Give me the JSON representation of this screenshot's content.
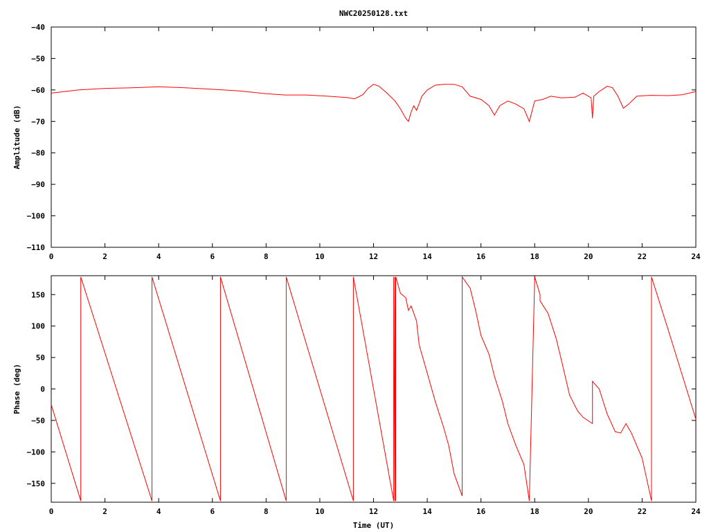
{
  "chart_data": [
    {
      "type": "line",
      "title": "NWC20250128.txt",
      "xlabel": "",
      "ylabel": "Amplitude (dB)",
      "xlim": [
        0,
        24
      ],
      "ylim": [
        -110,
        -40
      ],
      "xticks": [
        0,
        2,
        4,
        6,
        8,
        10,
        12,
        14,
        16,
        18,
        20,
        22,
        24
      ],
      "yticks": [
        -110,
        -100,
        -90,
        -80,
        -70,
        -60,
        -50,
        -40
      ],
      "tick_labels_y": [
        "−110",
        "−100",
        "−90",
        "−80",
        "−70",
        "−60",
        "−50",
        "−40"
      ],
      "grid": false,
      "color": "#ff0000",
      "series": [
        {
          "x": [
            0,
            0.5,
            1,
            2,
            3,
            4,
            5,
            6,
            7,
            8,
            8.7,
            9.5,
            10.3,
            11,
            11.3,
            11.6,
            11.8,
            12.0,
            12.2,
            12.5,
            12.8,
            13.0,
            13.2,
            13.3,
            13.4,
            13.5,
            13.6,
            13.8,
            14.0,
            14.3,
            14.6,
            15.0,
            15.3,
            15.6,
            16.0,
            16.3,
            16.5,
            16.7,
            17.0,
            17.3,
            17.6,
            17.8,
            18.0,
            18.3,
            18.6,
            19.0,
            19.5,
            19.8,
            20.0,
            20.1,
            20.15,
            20.2,
            20.4,
            20.7,
            20.9,
            21.1,
            21.3,
            21.5,
            21.8,
            22.3,
            23,
            23.5,
            24
          ],
          "y": [
            -61,
            -60.5,
            -60,
            -59.5,
            -59.3,
            -59,
            -59.3,
            -59.8,
            -60.3,
            -61.2,
            -61.6,
            -61.6,
            -62,
            -62.4,
            -62.8,
            -61.5,
            -59.5,
            -58.2,
            -58.8,
            -61,
            -63.5,
            -66,
            -69,
            -70,
            -67,
            -65,
            -66.5,
            -62,
            -60,
            -58.5,
            -58.2,
            -58.2,
            -59,
            -62,
            -63,
            -65,
            -68,
            -65,
            -63.5,
            -64.5,
            -66,
            -70,
            -63.5,
            -63,
            -62,
            -62.5,
            -62.3,
            -61,
            -62,
            -62.5,
            -69,
            -62,
            -60.5,
            -58.8,
            -59.3,
            -62,
            -65.8,
            -64.5,
            -62,
            -61.7,
            -61.8,
            -61.5,
            -60.5
          ]
        }
      ]
    },
    {
      "type": "line",
      "title": "",
      "xlabel": "Time (UT)",
      "ylabel": "Phase (deg)",
      "xlim": [
        0,
        24
      ],
      "ylim": [
        -180,
        180
      ],
      "xticks": [
        0,
        2,
        4,
        6,
        8,
        10,
        12,
        14,
        16,
        18,
        20,
        22,
        24
      ],
      "yticks": [
        -150,
        -100,
        -50,
        0,
        50,
        100,
        150
      ],
      "tick_labels_y": [
        "−150",
        "−100",
        "−50",
        "0",
        "50",
        "100",
        "150"
      ],
      "grid": false,
      "color": "#ff0000",
      "series": [
        {
          "x": [
            0,
            1.1,
            1.1,
            3.75,
            3.75,
            6.3,
            6.3,
            8.75,
            8.75,
            11.25,
            11.25,
            12.75,
            12.75,
            12.8,
            12.8,
            12.83,
            12.83,
            13.0,
            13.2,
            13.3,
            13.4,
            13.6,
            13.7,
            14.0,
            14.3,
            14.6,
            14.8,
            15.0,
            15.3,
            15.3,
            15.6,
            15.8,
            16.0,
            16.3,
            16.5,
            16.8,
            17.0,
            17.3,
            17.6,
            17.8,
            18.0,
            18.2,
            18.2,
            18.5,
            18.8,
            19.0,
            19.3,
            19.6,
            19.8,
            20.15,
            20.15,
            20.4,
            20.7,
            21.0,
            21.2,
            21.4,
            21.6,
            22.0,
            22.35,
            22.35,
            23.0,
            24
          ],
          "y": [
            -25,
            -178,
            178,
            -178,
            178,
            -178,
            178,
            -178,
            178,
            -178,
            178,
            -178,
            178,
            -178,
            178,
            -178,
            178,
            152,
            145,
            125,
            132,
            108,
            70,
            25,
            -20,
            -60,
            -90,
            -135,
            -170,
            178,
            160,
            125,
            85,
            55,
            20,
            -20,
            -55,
            -90,
            -120,
            -178,
            178,
            150,
            140,
            120,
            80,
            45,
            -10,
            -35,
            -45,
            -55,
            12,
            0,
            -40,
            -68,
            -70,
            -55,
            -70,
            -110,
            -178,
            178,
            90,
            -48
          ]
        }
      ]
    }
  ]
}
